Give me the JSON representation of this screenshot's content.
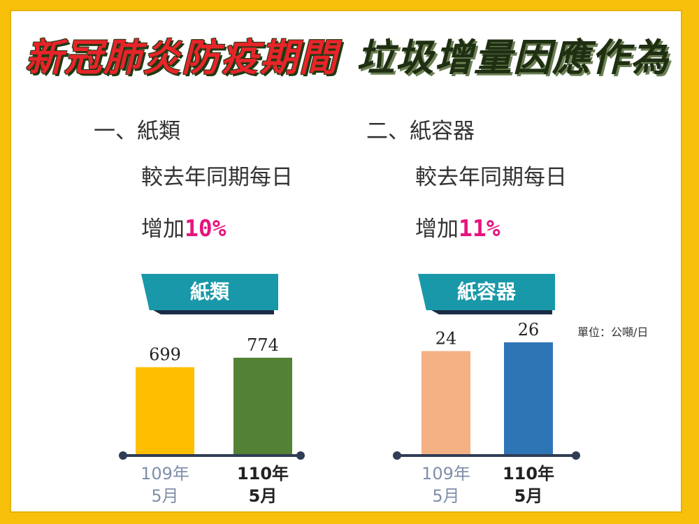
{
  "banner": {
    "title_left": "新冠肺炎防疫期間",
    "title_right": "垃圾增量因應作為"
  },
  "sections": [
    {
      "heading": "一、紙類",
      "line1": "較去年同期每日",
      "increase_prefix": "增加",
      "increase_value": "10%",
      "ribbon": "紙類"
    },
    {
      "heading": "二、紙容器",
      "line1": "較去年同期每日",
      "increase_prefix": "增加",
      "increase_value": "11%",
      "ribbon": "紙容器"
    }
  ],
  "unit_label": "單位：公噸/日",
  "colors": {
    "bar_paper_109": "#FDBF00",
    "bar_paper_110": "#538135",
    "bar_container_109": "#F4B183",
    "bar_container_110": "#2E75B6",
    "axis": "#2F3D55",
    "accent_pink": "#E6157E",
    "ribbon_teal": "#1898A8"
  },
  "chart_data": [
    {
      "type": "bar",
      "title": "紙類",
      "categories": [
        [
          "109年",
          "5月"
        ],
        [
          "110年",
          "5月"
        ]
      ],
      "values": [
        699,
        774
      ],
      "data_labels": [
        "699",
        "774"
      ],
      "bar_colors": [
        "#FDBF00",
        "#538135"
      ],
      "category_styles": [
        "muted",
        "bold"
      ],
      "grid": false
    },
    {
      "type": "bar",
      "title": "紙容器",
      "categories": [
        [
          "109年",
          "5月"
        ],
        [
          "110年",
          "5月"
        ]
      ],
      "values": [
        24,
        26
      ],
      "data_labels": [
        "24",
        "26"
      ],
      "bar_colors": [
        "#F4B183",
        "#2E75B6"
      ],
      "category_styles": [
        "muted",
        "bold"
      ],
      "grid": false
    }
  ]
}
